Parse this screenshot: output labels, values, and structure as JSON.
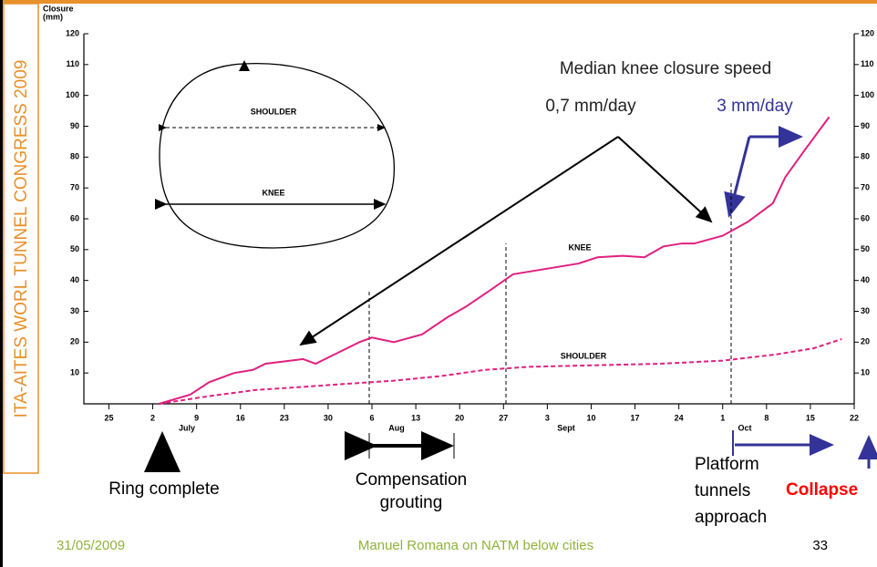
{
  "chart_data": {
    "type": "line",
    "y_axis_label": [
      "Closure",
      "(mm)"
    ],
    "xlim": [
      -4,
      119
    ],
    "xticks": [
      {
        "value": 0,
        "label": "25"
      },
      {
        "value": 7,
        "label": "2"
      },
      {
        "value": 14,
        "label": "9"
      },
      {
        "value": 21,
        "label": "16"
      },
      {
        "value": 28,
        "label": "23"
      },
      {
        "value": 35,
        "label": "30"
      },
      {
        "value": 42,
        "label": "6"
      },
      {
        "value": 49,
        "label": "13"
      },
      {
        "value": 56,
        "label": "20"
      },
      {
        "value": 63,
        "label": "27"
      },
      {
        "value": 70,
        "label": "3"
      },
      {
        "value": 77,
        "label": "10"
      },
      {
        "value": 84,
        "label": "17"
      },
      {
        "value": 91,
        "label": "24"
      },
      {
        "value": 98,
        "label": "1"
      },
      {
        "value": 105,
        "label": "8"
      },
      {
        "value": 112,
        "label": "15"
      },
      {
        "value": 119,
        "label": "22"
      }
    ],
    "month_labels": [
      "July",
      "Aug",
      "Sept",
      "Oct"
    ],
    "ylim": [
      0,
      120
    ],
    "yticks": [
      10,
      20,
      30,
      40,
      50,
      60,
      70,
      80,
      90,
      100,
      110,
      120
    ],
    "series": [
      {
        "name": "KNEE",
        "color": "#e0207f",
        "dashed": false,
        "x": [
          8,
          13,
          16,
          20,
          23,
          25,
          29,
          31,
          33,
          36,
          40,
          42,
          45.5,
          50,
          54,
          57,
          61,
          64.5,
          69,
          75,
          78,
          82,
          85.5,
          88.5,
          91.5,
          93.5,
          98,
          102,
          106,
          108,
          111,
          115
        ],
        "values": [
          0,
          3,
          7,
          10,
          11,
          13,
          14,
          14.5,
          13,
          16,
          20,
          21.5,
          20,
          22.5,
          28,
          31.5,
          37,
          42,
          43.5,
          45.5,
          47.5,
          48,
          47.5,
          51,
          52,
          52,
          54.5,
          59,
          65,
          73.5,
          82,
          93
        ]
      },
      {
        "name": "SHOULDER",
        "color": "#e0207f",
        "dashed": true,
        "x": [
          8,
          16,
          23.5,
          31,
          38,
          45.5,
          53,
          60,
          67,
          77.5,
          88,
          98,
          106.5,
          112.5,
          117
        ],
        "values": [
          0,
          2.5,
          4.5,
          5.5,
          6.5,
          7.5,
          9,
          11,
          12,
          12.5,
          13,
          14,
          16,
          18,
          21
        ]
      }
    ],
    "inset_labels": [
      "SHOULDER",
      "KNEE"
    ],
    "annotations": [
      "Median knee closure speed",
      "0,7 mm/day",
      "3 mm/day"
    ]
  },
  "slide": {
    "side_title": "ITA-AITES WORL TUNNEL CONGRESS 2009",
    "ring": "Ring complete",
    "grouting": [
      "Compensation",
      "grouting"
    ],
    "platform": [
      "Platform",
      "tunnels",
      "approach"
    ],
    "collapse": "Collapse",
    "date": "31/05/2009",
    "footer": "Manuel Romana on NATM below cities",
    "page": "33"
  }
}
